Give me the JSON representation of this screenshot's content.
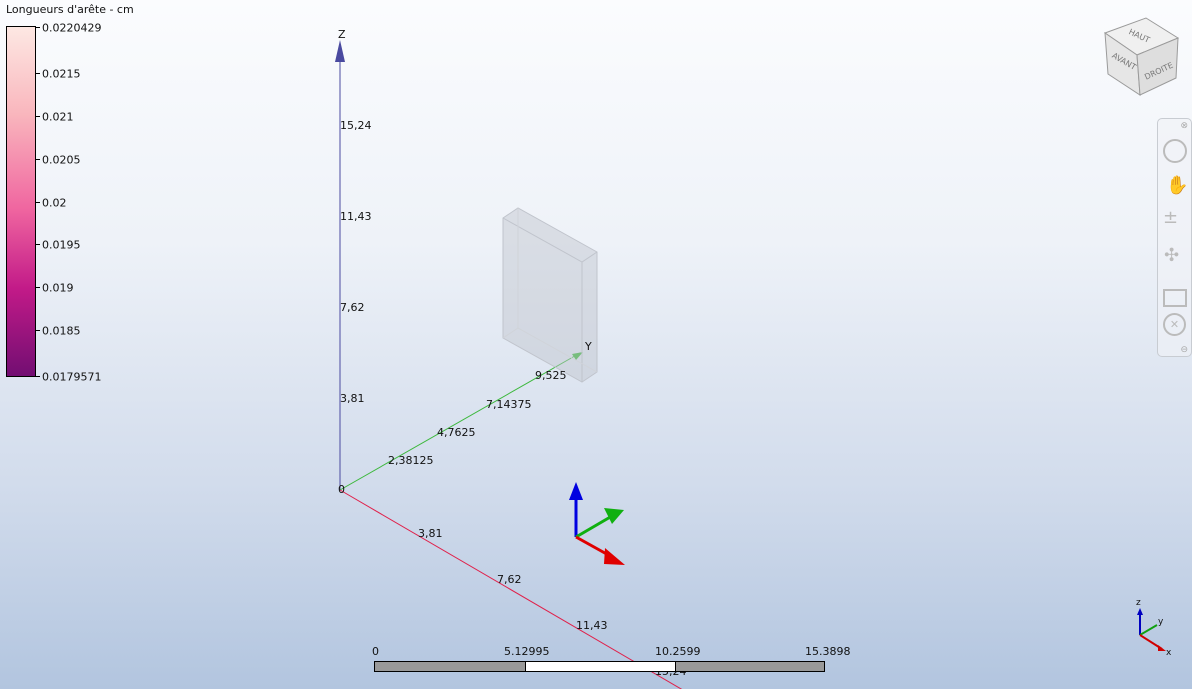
{
  "legend": {
    "title": "Longueurs d'arête - cm",
    "labels": [
      "0.0220429",
      "0.0215",
      "0.021",
      "0.0205",
      "0.02",
      "0.0195",
      "0.019",
      "0.0185",
      "0.0179571"
    ],
    "colors": {
      "max": "#fde8e3",
      "mid": "#f066a0",
      "min": "#720e72"
    }
  },
  "axes": {
    "z": {
      "name": "Z",
      "ticks": [
        "15,24",
        "11,43",
        "7,62",
        "3,81"
      ],
      "color": "#4a4aa0"
    },
    "y": {
      "name": "Y",
      "ticks": [
        "2,38125",
        "4,7625",
        "7,14375",
        "9,525"
      ],
      "color": "#3cb83c"
    },
    "x": {
      "ticks": [
        "3,81",
        "7,62",
        "11,43",
        "15,24"
      ],
      "color": "#e0204a"
    },
    "origin": "0"
  },
  "viewcube": {
    "top": "HAUT",
    "front": "AVANT",
    "right": "DROITE"
  },
  "navbar": {
    "items": [
      "steering-wheel-icon",
      "pan-icon",
      "zoom-icon",
      "orbit-icon",
      "rewind-icon",
      "look-icon"
    ]
  },
  "scalebar": {
    "labels": [
      "0",
      "5.12995",
      "10.2599",
      "15.3898"
    ]
  },
  "triad": {
    "x": "x",
    "y": "y",
    "z": "z"
  }
}
